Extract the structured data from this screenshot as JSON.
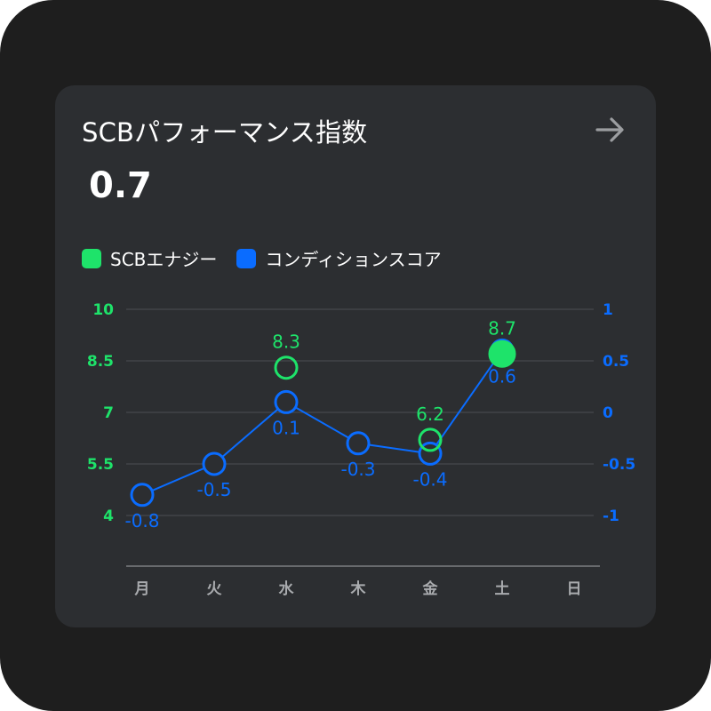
{
  "card": {
    "title": "SCBパフォーマンス指数",
    "value": "0.7",
    "arrow_icon": "arrow-right-icon"
  },
  "legend": [
    {
      "label": "SCBエナジー",
      "color": "#1ee36a"
    },
    {
      "label": "コンディションスコア",
      "color": "#0a6cff"
    }
  ],
  "chart_data": {
    "type": "line",
    "categories": [
      "月",
      "火",
      "水",
      "木",
      "金",
      "土",
      "日"
    ],
    "left_axis": {
      "min": 4,
      "max": 10,
      "ticks": [
        "10",
        "8.5",
        "7",
        "5.5",
        "4"
      ],
      "color": "#1ee36a"
    },
    "right_axis": {
      "min": -1,
      "max": 1,
      "ticks": [
        "1",
        "0.5",
        "0",
        "-0.5",
        "-1"
      ],
      "color": "#0a6cff"
    },
    "series": [
      {
        "name": "SCBエナジー",
        "axis": "left",
        "color": "#1ee36a",
        "points": [
          {
            "index": 2,
            "value": 8.3,
            "label": "8.3"
          },
          {
            "index": 4,
            "value": 6.2,
            "label": "6.2"
          },
          {
            "index": 5,
            "value": 8.7,
            "label": "8.7",
            "filled": true
          }
        ]
      },
      {
        "name": "コンディションスコア",
        "axis": "right",
        "color": "#0a6cff",
        "points": [
          {
            "index": 0,
            "value": -0.8,
            "label": "-0.8"
          },
          {
            "index": 1,
            "value": -0.5,
            "label": "-0.5"
          },
          {
            "index": 2,
            "value": 0.1,
            "label": "0.1"
          },
          {
            "index": 3,
            "value": -0.3,
            "label": "-0.3"
          },
          {
            "index": 4,
            "value": -0.4,
            "label": "-0.4"
          },
          {
            "index": 5,
            "value": 0.6,
            "label": "0.6",
            "filled": true
          }
        ]
      }
    ]
  }
}
